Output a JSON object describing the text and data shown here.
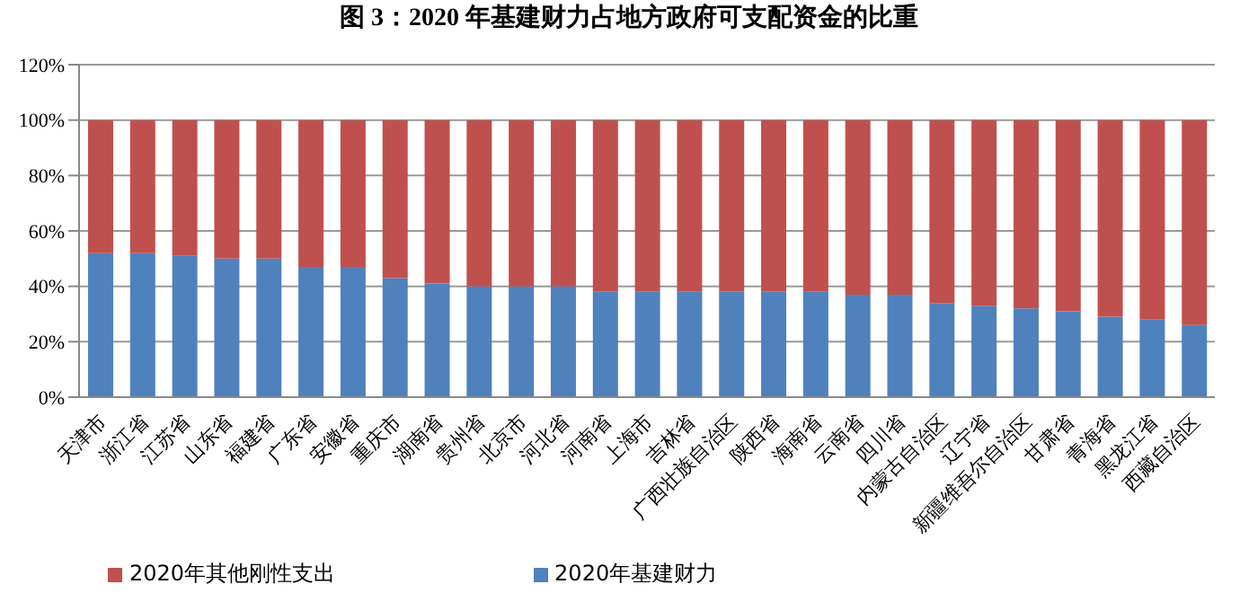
{
  "chart_data": {
    "type": "bar",
    "title": "图 3：2020 年基建财力占地方政府可支配资金的比重",
    "categories": [
      "天津市",
      "浙江省",
      "江苏省",
      "山东省",
      "福建省",
      "广东省",
      "安徽省",
      "重庆市",
      "湖南省",
      "贵州省",
      "北京市",
      "河北省",
      "河南省",
      "上海市",
      "吉林省",
      "广西壮族自治区",
      "陕西省",
      "海南省",
      "云南省",
      "四川省",
      "内蒙古自治区",
      "辽宁省",
      "新疆维吾尔自治区",
      "甘肃省",
      "青海省",
      "黑龙江省",
      "西藏自治区"
    ],
    "series": [
      {
        "name": "2020年基建财力",
        "color": "#4f81bd",
        "values": [
          52,
          52,
          51,
          50,
          50,
          47,
          47,
          43,
          41,
          40,
          40,
          40,
          38,
          38,
          38,
          38,
          38,
          38,
          37,
          37,
          34,
          33,
          32,
          31,
          29,
          28,
          26
        ]
      },
      {
        "name": "2020年其他刚性支出",
        "color": "#c0504d",
        "values": [
          48,
          48,
          49,
          50,
          50,
          53,
          53,
          57,
          59,
          60,
          60,
          60,
          62,
          62,
          62,
          62,
          62,
          62,
          63,
          63,
          66,
          67,
          68,
          69,
          71,
          72,
          74
        ]
      }
    ],
    "stacked": true,
    "ylim": [
      0,
      120
    ],
    "yticks": [
      {
        "value": 0,
        "label": "0%"
      },
      {
        "value": 20,
        "label": "20%"
      },
      {
        "value": 40,
        "label": "40%"
      },
      {
        "value": 60,
        "label": "60%"
      },
      {
        "value": 80,
        "label": "80%"
      },
      {
        "value": 100,
        "label": "100%"
      },
      {
        "value": 120,
        "label": "120%"
      }
    ],
    "grid": "y",
    "legend": "bottom left"
  }
}
